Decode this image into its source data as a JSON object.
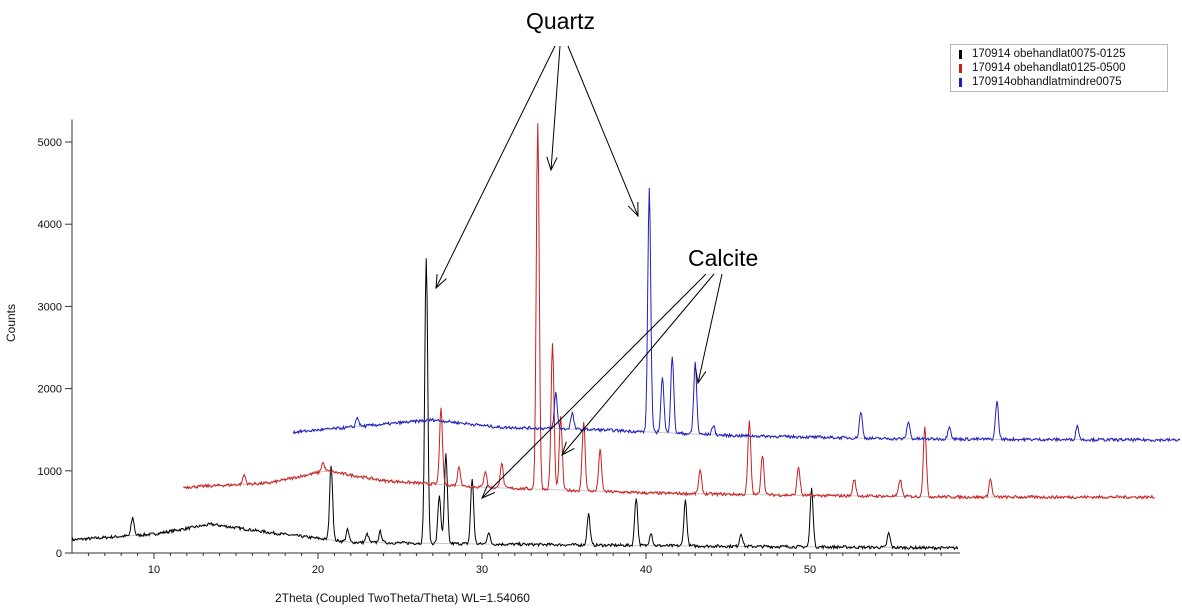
{
  "chart_data": {
    "type": "line",
    "title": "",
    "xlabel": "2Theta (Coupled TwoTheta/Theta) WL=1.54060",
    "ylabel": "Counts",
    "xlim": [
      5,
      60
    ],
    "ylim": [
      0,
      5200
    ],
    "x_ticks": [
      10,
      20,
      30,
      40,
      50
    ],
    "y_ticks": [
      0,
      1000,
      2000,
      3000,
      4000,
      5000
    ],
    "grid": false,
    "legend_position": "top-right",
    "note": "Series are vertically and horizontally offset (waterfall). Peak positions below are given in the stacked plot's axis units.",
    "series": [
      {
        "name": "170914 obehandlat0075-0125",
        "color": "#000000",
        "x_range": [
          5,
          59
        ],
        "baseline": [
          [
            5,
            160
          ],
          [
            10,
            230
          ],
          [
            13.5,
            350
          ],
          [
            17,
            250
          ],
          [
            22,
            130
          ],
          [
            30,
            110
          ],
          [
            40,
            90
          ],
          [
            50,
            75
          ],
          [
            59,
            60
          ]
        ],
        "peaks": [
          [
            8.7,
            430
          ],
          [
            20.8,
            1080
          ],
          [
            21.8,
            280
          ],
          [
            23,
            230
          ],
          [
            23.8,
            260
          ],
          [
            26.6,
            3590
          ],
          [
            27.4,
            700
          ],
          [
            27.8,
            1200
          ],
          [
            29.4,
            900
          ],
          [
            30.4,
            250
          ],
          [
            36.5,
            480
          ],
          [
            39.4,
            680
          ],
          [
            40.3,
            250
          ],
          [
            42.4,
            640
          ],
          [
            45.8,
            240
          ],
          [
            50.1,
            780
          ],
          [
            54.8,
            240
          ]
        ]
      },
      {
        "name": "170914 obehandlat0125-0500",
        "color": "#cc1f1f",
        "x_range": [
          11.8,
          71
        ],
        "baseline": [
          [
            11.8,
            800
          ],
          [
            17,
            850
          ],
          [
            20.5,
            1000
          ],
          [
            24,
            880
          ],
          [
            30,
            800
          ],
          [
            40,
            730
          ],
          [
            50,
            700
          ],
          [
            60,
            680
          ],
          [
            71,
            680
          ]
        ],
        "peaks": [
          [
            15.5,
            950
          ],
          [
            20.3,
            1100
          ],
          [
            27.5,
            1750
          ],
          [
            28.6,
            1050
          ],
          [
            30.2,
            1000
          ],
          [
            31.2,
            1100
          ],
          [
            33.4,
            5230
          ],
          [
            34.3,
            2550
          ],
          [
            34.8,
            1650
          ],
          [
            36.2,
            1600
          ],
          [
            37.2,
            1250
          ],
          [
            43.3,
            1000
          ],
          [
            46.3,
            1600
          ],
          [
            47.1,
            1200
          ],
          [
            49.3,
            1050
          ],
          [
            52.7,
            900
          ],
          [
            55.5,
            900
          ],
          [
            57,
            1550
          ],
          [
            61,
            900
          ]
        ]
      },
      {
        "name": "170914obhandlatmindre0075",
        "color": "#1f1fbf",
        "x_range": [
          18.5,
          78
        ],
        "baseline": [
          [
            18.5,
            1470
          ],
          [
            22,
            1530
          ],
          [
            27,
            1620
          ],
          [
            31,
            1530
          ],
          [
            37,
            1500
          ],
          [
            45,
            1430
          ],
          [
            55,
            1390
          ],
          [
            65,
            1380
          ],
          [
            78,
            1370
          ]
        ],
        "peaks": [
          [
            22.4,
            1650
          ],
          [
            34.5,
            1950
          ],
          [
            35.5,
            1700
          ],
          [
            40.2,
            4440
          ],
          [
            41,
            2150
          ],
          [
            41.6,
            2400
          ],
          [
            43,
            2320
          ],
          [
            44.1,
            1550
          ],
          [
            53.1,
            1720
          ],
          [
            56,
            1600
          ],
          [
            58.5,
            1550
          ],
          [
            61.4,
            1850
          ],
          [
            66.3,
            1550
          ]
        ]
      }
    ],
    "annotations": [
      {
        "label": "Quartz"
      },
      {
        "label": "Calcite"
      }
    ]
  }
}
